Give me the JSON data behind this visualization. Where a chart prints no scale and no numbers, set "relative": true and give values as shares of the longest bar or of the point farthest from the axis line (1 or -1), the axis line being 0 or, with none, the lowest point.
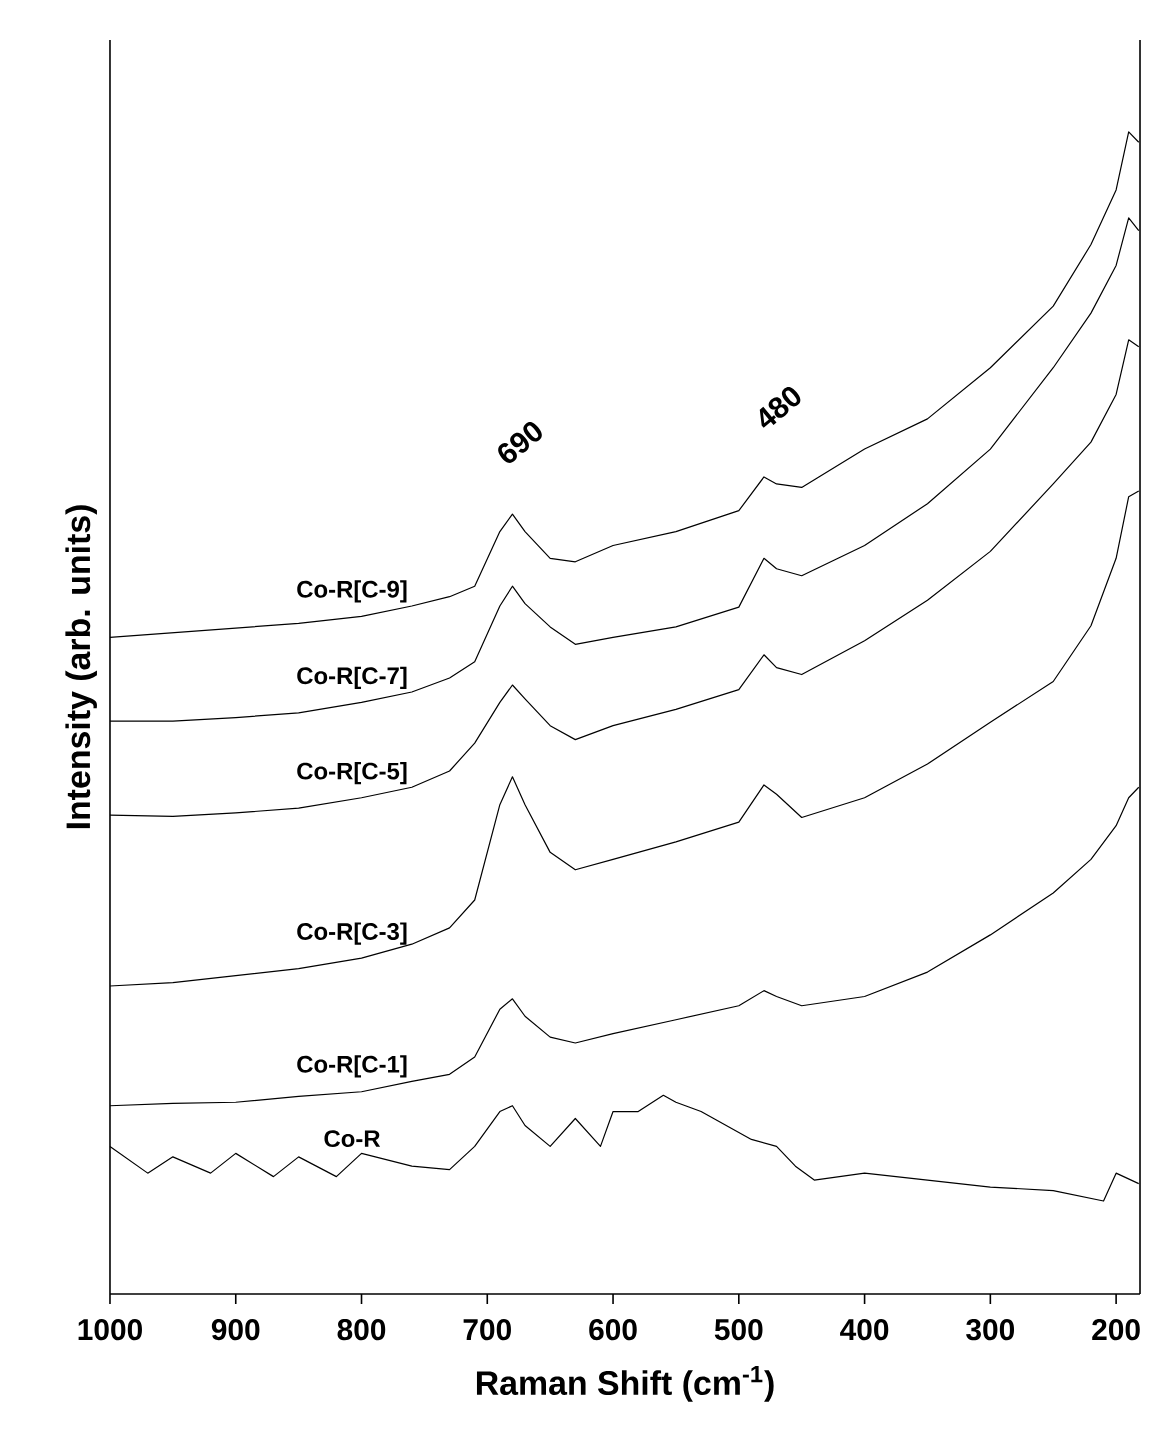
{
  "chart_data": {
    "type": "line",
    "relative": true,
    "xlabel": "Raman Shift (cm$^{-1}$)",
    "ylabel": "Intensity (arb. units)",
    "xlim": [
      1000,
      181
    ],
    "xticks": [
      1000,
      900,
      800,
      700,
      600,
      500,
      400,
      300,
      200
    ],
    "annotations": [
      "690",
      "480"
    ],
    "series": [
      {
        "name": "Co-R[C-9]",
        "color": "#000000",
        "x": [
          1000,
          950,
          900,
          850,
          800,
          760,
          730,
          710,
          690,
          680,
          670,
          650,
          630,
          600,
          550,
          500,
          480,
          470,
          450,
          400,
          350,
          300,
          250,
          220,
          200,
          190,
          182
        ],
        "values": [
          0.565,
          0.569,
          0.573,
          0.577,
          0.583,
          0.592,
          0.6,
          0.609,
          0.656,
          0.671,
          0.656,
          0.633,
          0.63,
          0.644,
          0.656,
          0.674,
          0.703,
          0.697,
          0.694,
          0.727,
          0.753,
          0.797,
          0.85,
          0.903,
          0.95,
          1,
          0.991
        ]
      },
      {
        "name": "Co-R[C-7]",
        "color": "#000000",
        "x": [
          1000,
          950,
          900,
          850,
          800,
          760,
          730,
          710,
          690,
          680,
          670,
          650,
          630,
          600,
          550,
          500,
          480,
          470,
          450,
          400,
          350,
          300,
          250,
          220,
          200,
          190,
          182
        ],
        "values": [
          0.493,
          0.493,
          0.496,
          0.5,
          0.509,
          0.518,
          0.53,
          0.544,
          0.592,
          0.609,
          0.594,
          0.574,
          0.559,
          0.565,
          0.574,
          0.591,
          0.633,
          0.624,
          0.618,
          0.644,
          0.68,
          0.727,
          0.797,
          0.844,
          0.885,
          0.926,
          0.915
        ]
      },
      {
        "name": "Co-R[C-5]",
        "color": "#000000",
        "x": [
          1000,
          950,
          900,
          850,
          800,
          760,
          730,
          710,
          690,
          680,
          670,
          650,
          630,
          600,
          550,
          500,
          480,
          470,
          450,
          400,
          350,
          300,
          250,
          220,
          200,
          190,
          182
        ],
        "values": [
          0.412,
          0.411,
          0.414,
          0.418,
          0.427,
          0.436,
          0.45,
          0.474,
          0.509,
          0.524,
          0.512,
          0.489,
          0.477,
          0.489,
          0.503,
          0.52,
          0.55,
          0.539,
          0.533,
          0.562,
          0.597,
          0.639,
          0.697,
          0.733,
          0.774,
          0.821,
          0.815
        ]
      },
      {
        "name": "Co-R[C-3]",
        "color": "#000000",
        "x": [
          1000,
          950,
          900,
          850,
          800,
          760,
          730,
          710,
          690,
          680,
          670,
          650,
          630,
          600,
          550,
          500,
          480,
          470,
          450,
          400,
          350,
          300,
          250,
          220,
          200,
          190,
          182
        ],
        "values": [
          0.265,
          0.268,
          0.274,
          0.28,
          0.289,
          0.301,
          0.315,
          0.339,
          0.421,
          0.445,
          0.421,
          0.38,
          0.365,
          0.374,
          0.389,
          0.406,
          0.438,
          0.43,
          0.41,
          0.427,
          0.456,
          0.492,
          0.527,
          0.575,
          0.633,
          0.686,
          0.691
        ]
      },
      {
        "name": "Co-R[C-1]",
        "color": "#000000",
        "x": [
          1000,
          950,
          900,
          850,
          800,
          760,
          730,
          710,
          690,
          680,
          670,
          650,
          630,
          600,
          550,
          500,
          480,
          470,
          450,
          400,
          350,
          300,
          250,
          220,
          200,
          190,
          182
        ],
        "values": [
          0.162,
          0.164,
          0.165,
          0.17,
          0.174,
          0.183,
          0.189,
          0.204,
          0.245,
          0.254,
          0.239,
          0.221,
          0.216,
          0.224,
          0.236,
          0.248,
          0.261,
          0.256,
          0.248,
          0.256,
          0.277,
          0.309,
          0.345,
          0.374,
          0.403,
          0.427,
          0.436
        ]
      },
      {
        "name": "Co-R",
        "color": "#000000",
        "x": [
          1000,
          970,
          950,
          920,
          900,
          870,
          850,
          820,
          800,
          760,
          730,
          710,
          690,
          680,
          670,
          650,
          630,
          610,
          600,
          580,
          560,
          550,
          530,
          510,
          490,
          470,
          455,
          440,
          400,
          350,
          300,
          250,
          210,
          200,
          182
        ],
        "values": [
          0.127,
          0.104,
          0.118,
          0.104,
          0.121,
          0.101,
          0.118,
          0.101,
          0.121,
          0.11,
          0.107,
          0.127,
          0.157,
          0.162,
          0.145,
          0.127,
          0.151,
          0.127,
          0.157,
          0.157,
          0.171,
          0.165,
          0.157,
          0.145,
          0.133,
          0.127,
          0.11,
          0.098,
          0.104,
          0.098,
          0.092,
          0.089,
          0.08,
          0.104,
          0.095
        ]
      }
    ]
  }
}
